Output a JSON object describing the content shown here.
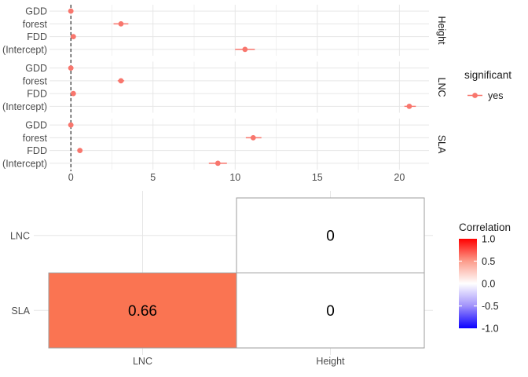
{
  "colors": {
    "significant_yes": "#F8766D",
    "grid_major": "#E6E6E6",
    "grid_minor": "#F1F1F1",
    "axis_text": "#4D4D4D",
    "strip_text": "#1A1A1A",
    "legend_text": "#1A1A1A",
    "cell_border": "#9E9E9E",
    "cell_text": "#000000",
    "zero_line": "#000000",
    "gradient_high": "#FF0000",
    "gradient_mid": "#FFFFFF",
    "gradient_low": "#0B00FF",
    "gradient_q_high": "#FC9C8B",
    "gradient_q_low": "#A192FB",
    "heatmap_positive_fill": "#FA7452",
    "heatmap_zero_fill": "#FFFFFF"
  },
  "chart_data": [
    {
      "type": "scatter",
      "subtype": "coefficient-forest-plot",
      "xlim": [
        -1.3,
        21.8
      ],
      "x_ticks": [
        0,
        5,
        10,
        15,
        20
      ],
      "x_tick_labels": [
        "0",
        "5",
        "10",
        "15",
        "20"
      ],
      "x_minor_ticks": [
        2.5,
        7.5,
        12.5,
        17.5
      ],
      "zero_line_x": 0,
      "grid": true,
      "legend": {
        "title": "significant",
        "position": "right",
        "items": [
          {
            "label": "yes"
          }
        ]
      },
      "facets": [
        {
          "label": "Height",
          "rows": [
            {
              "term": "GDD",
              "estimate": 0.0,
              "ci_low": -0.15,
              "ci_high": 0.15
            },
            {
              "term": "forest",
              "estimate": 3.05,
              "ci_low": 2.6,
              "ci_high": 3.5
            },
            {
              "term": "FDD",
              "estimate": 0.15,
              "ci_low": 0.0,
              "ci_high": 0.3
            },
            {
              "term": "(Intercept)",
              "estimate": 10.6,
              "ci_low": 10.0,
              "ci_high": 11.2
            }
          ]
        },
        {
          "label": "LNC",
          "rows": [
            {
              "term": "GDD",
              "estimate": 0.0,
              "ci_low": -0.12,
              "ci_high": 0.12
            },
            {
              "term": "forest",
              "estimate": 3.05,
              "ci_low": 2.85,
              "ci_high": 3.25
            },
            {
              "term": "FDD",
              "estimate": 0.15,
              "ci_low": 0.0,
              "ci_high": 0.3
            },
            {
              "term": "(Intercept)",
              "estimate": 20.6,
              "ci_low": 20.3,
              "ci_high": 21.0
            }
          ]
        },
        {
          "label": "SLA",
          "rows": [
            {
              "term": "GDD",
              "estimate": 0.0,
              "ci_low": -0.15,
              "ci_high": 0.15
            },
            {
              "term": "forest",
              "estimate": 11.1,
              "ci_low": 10.65,
              "ci_high": 11.6
            },
            {
              "term": "FDD",
              "estimate": 0.55,
              "ci_low": 0.4,
              "ci_high": 0.7
            },
            {
              "term": "(Intercept)",
              "estimate": 8.95,
              "ci_low": 8.4,
              "ci_high": 9.5
            }
          ]
        }
      ]
    },
    {
      "type": "heatmap",
      "x_categories": [
        "LNC",
        "Height"
      ],
      "y_categories": [
        "LNC",
        "SLA"
      ],
      "cells": [
        {
          "row": "LNC",
          "col": "Height",
          "value": 0,
          "label": "0",
          "fill_key": "heatmap_zero_fill"
        },
        {
          "row": "SLA",
          "col": "LNC",
          "value": 0.66,
          "label": "0.66",
          "fill_key": "heatmap_positive_fill"
        },
        {
          "row": "SLA",
          "col": "Height",
          "value": 0,
          "label": "0",
          "fill_key": "heatmap_zero_fill"
        }
      ],
      "legend": {
        "title": "Correlation",
        "limits": [
          -1.0,
          1.0
        ],
        "ticks": [
          1.0,
          0.5,
          0.0,
          -0.5,
          -1.0
        ],
        "tick_labels": [
          "1.0",
          "0.5",
          "0.0",
          "-0.5",
          "-1.0"
        ],
        "position": "right"
      },
      "grid": true
    }
  ]
}
